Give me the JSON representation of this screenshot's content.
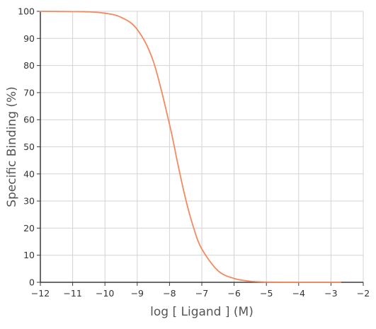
{
  "chart_data": {
    "type": "line",
    "title": "",
    "xlabel": "log [ Ligand ] (M)",
    "ylabel": "Specific Binding (%)",
    "xlim": [
      -12,
      -2
    ],
    "ylim": [
      0,
      100
    ],
    "x_ticks": [
      -12,
      -11,
      -10,
      -9,
      -8,
      -7,
      -6,
      -5,
      -4,
      -3,
      -2
    ],
    "x_tick_labels": [
      "−12",
      "−11",
      "−10",
      "−9",
      "−8",
      "−7",
      "−6",
      "−5",
      "−4",
      "−3",
      "−2"
    ],
    "y_ticks": [
      0,
      10,
      20,
      30,
      40,
      50,
      60,
      70,
      80,
      90,
      100
    ],
    "y_tick_labels": [
      "0",
      "10",
      "20",
      "30",
      "40",
      "50",
      "60",
      "70",
      "80",
      "90",
      "100"
    ],
    "grid": true,
    "series": [
      {
        "color": "#f4895f",
        "x": [
          -12,
          -11,
          -10.5,
          -10,
          -9.5,
          -9,
          -8.5,
          -8,
          -7.75,
          -7.5,
          -7.25,
          -7,
          -6.5,
          -6,
          -5.5,
          -5,
          -4,
          -3,
          -2.7
        ],
        "y": [
          100,
          99.9,
          99.8,
          99.3,
          97.8,
          93.3,
          81.5,
          58.3,
          44.1,
          30.7,
          20.0,
          12.3,
          4.3,
          1.4,
          0.4,
          0.1,
          0.0,
          0.0,
          0.0
        ]
      }
    ]
  }
}
